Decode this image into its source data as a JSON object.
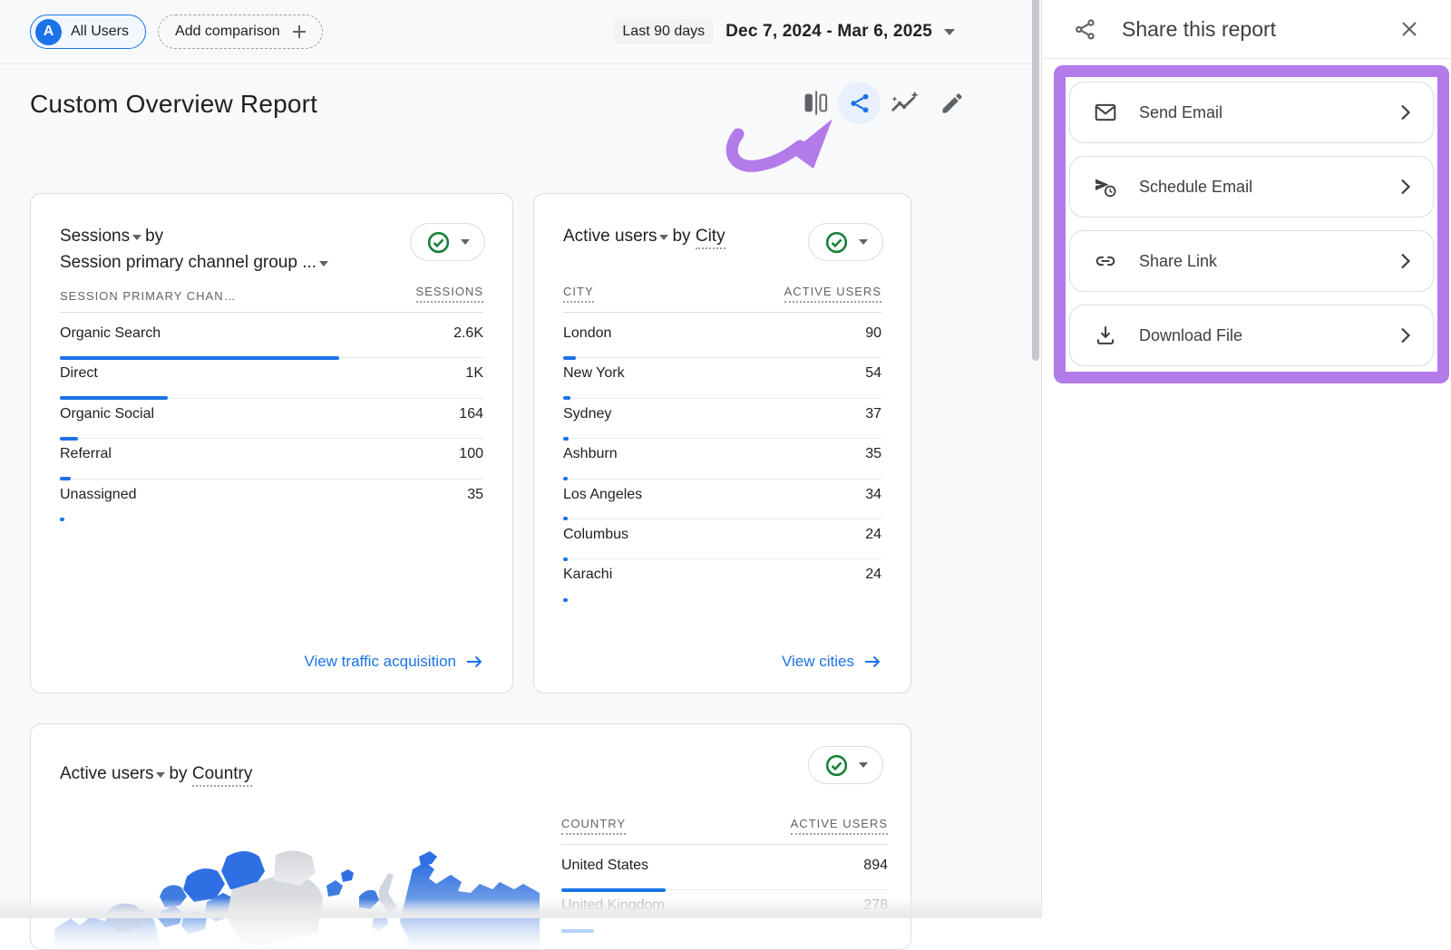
{
  "top_bar": {
    "avatar_letter": "A",
    "all_users_label": "All Users",
    "add_comparison_label": "Add comparison",
    "date_preset": "Last 90 days",
    "date_range": "Dec 7, 2024 - Mar 6, 2025"
  },
  "report": {
    "title": "Custom Overview Report"
  },
  "cards": {
    "sessions": {
      "metric": "Sessions",
      "connector": "by",
      "dimension": "Session primary channel group ...",
      "columns": [
        "SESSION PRIMARY CHAN…",
        "SESSIONS"
      ],
      "rows": [
        {
          "label": "Organic Search",
          "value": "2.6K",
          "bar_pct": 66
        },
        {
          "label": "Direct",
          "value": "1K",
          "bar_pct": 25.5
        },
        {
          "label": "Organic Social",
          "value": "164",
          "bar_pct": 4.2
        },
        {
          "label": "Referral",
          "value": "100",
          "bar_pct": 2.6
        },
        {
          "label": "Unassigned",
          "value": "35",
          "bar_pct": 1.1
        }
      ],
      "footer_link": "View traffic acquisition"
    },
    "cities": {
      "metric": "Active users",
      "connector": "by",
      "dimension": "City",
      "columns": [
        "CITY",
        "ACTIVE USERS"
      ],
      "rows": [
        {
          "label": "London",
          "value": "90",
          "bar_pct": 3.9
        },
        {
          "label": "New York",
          "value": "54",
          "bar_pct": 2.3
        },
        {
          "label": "Sydney",
          "value": "37",
          "bar_pct": 1.6
        },
        {
          "label": "Ashburn",
          "value": "35",
          "bar_pct": 1.5
        },
        {
          "label": "Los Angeles",
          "value": "34",
          "bar_pct": 1.5
        },
        {
          "label": "Columbus",
          "value": "24",
          "bar_pct": 1.0
        },
        {
          "label": "Karachi",
          "value": "24",
          "bar_pct": 1.0
        }
      ],
      "footer_link": "View cities"
    },
    "countries": {
      "metric": "Active users",
      "connector": "by",
      "dimension": "Country",
      "columns": [
        "COUNTRY",
        "ACTIVE USERS"
      ],
      "rows": [
        {
          "label": "United States",
          "value": "894",
          "bar_pct": 32
        },
        {
          "label": "United Kingdom",
          "value": "278",
          "bar_pct": 10,
          "faded": true
        }
      ]
    }
  },
  "panel": {
    "title": "Share this report",
    "options": [
      {
        "id": "send-email",
        "icon": "mail-icon",
        "label": "Send Email"
      },
      {
        "id": "schedule-email",
        "icon": "schedule-send-icon",
        "label": "Schedule Email"
      },
      {
        "id": "share-link",
        "icon": "link-icon",
        "label": "Share Link"
      },
      {
        "id": "download-file",
        "icon": "download-icon",
        "label": "Download File"
      }
    ]
  },
  "colors": {
    "accent_blue": "#1a73e8",
    "highlight_purple": "#b37ae9",
    "status_green": "#188038",
    "share_button_bg": "#e8f0fe"
  }
}
